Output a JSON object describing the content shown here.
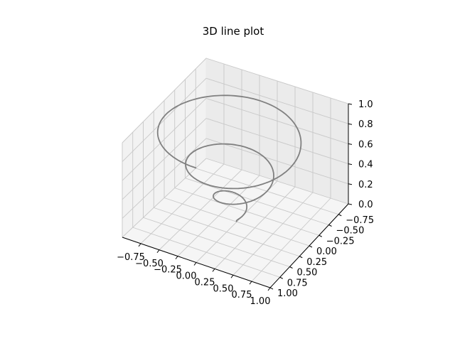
{
  "chart_data": {
    "type": "line",
    "title": "3D line plot",
    "xlabel": "",
    "ylabel": "",
    "zlabel": "",
    "xlim": [
      -1.0,
      1.0
    ],
    "ylim": [
      -1.0,
      1.0
    ],
    "zlim": [
      0.0,
      1.0
    ],
    "x_ticks": [
      -0.75,
      -0.5,
      -0.25,
      0.0,
      0.25,
      0.5,
      0.75,
      1.0
    ],
    "y_ticks": [
      -0.75,
      -0.5,
      -0.25,
      0.0,
      0.25,
      0.5,
      0.75,
      1.0
    ],
    "z_ticks": [
      0.0,
      0.2,
      0.4,
      0.6,
      0.8,
      1.0
    ],
    "x_tick_labels": [
      "−0.75",
      "−0.50",
      "−0.25",
      "0.00",
      "0.25",
      "0.50",
      "0.75",
      "1.00"
    ],
    "y_tick_labels": [
      "−0.75",
      "−0.50",
      "−0.25",
      "0.00",
      "0.25",
      "0.50",
      "0.75",
      "1.00"
    ],
    "z_tick_labels": [
      "0.0",
      "0.2",
      "0.4",
      "0.6",
      "0.8",
      "1.0"
    ],
    "grid": true,
    "series": [
      {
        "color": "#808080",
        "parametric": "helix: z from 0 to 1, radius = z, 3 turns",
        "z_range": [
          0.0,
          1.0
        ],
        "turns": 3
      }
    ]
  }
}
